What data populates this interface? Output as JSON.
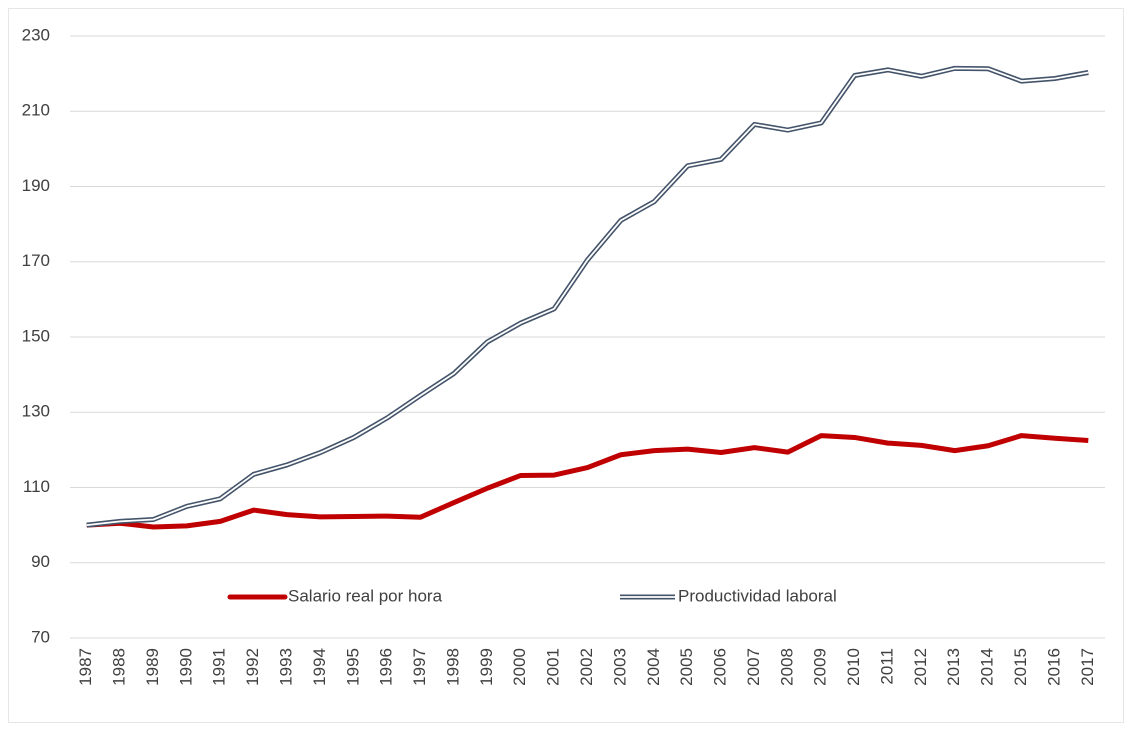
{
  "chart_data": {
    "type": "line",
    "categories": [
      "1987",
      "1988",
      "1989",
      "1990",
      "1991",
      "1992",
      "1993",
      "1994",
      "1995",
      "1996",
      "1997",
      "1998",
      "1999",
      "2000",
      "2001",
      "2002",
      "2003",
      "2004",
      "2005",
      "2006",
      "2007",
      "2008",
      "2009",
      "2010",
      "2011",
      "2012",
      "2013",
      "2014",
      "2015",
      "2016",
      "2017"
    ],
    "series": [
      {
        "name": "Salario real por hora",
        "color": "#c00000",
        "style": "solid",
        "values": [
          100,
          100.5,
          99.5,
          99.8,
          101,
          104,
          102.8,
          102.2,
          102.3,
          102.4,
          102.1,
          106,
          109.8,
          113.2,
          113.3,
          115.3,
          118.7,
          119.8,
          120.2,
          119.3,
          120.6,
          119.4,
          123.8,
          123.3,
          121.8,
          121.2,
          119.8,
          121.1,
          123.8,
          123.1,
          122.5
        ]
      },
      {
        "name": "Productividad laboral",
        "color": "#44546a",
        "style": "double",
        "values": [
          100,
          101,
          101.5,
          105,
          107,
          113.5,
          116,
          119.3,
          123.3,
          128.5,
          134.5,
          140.3,
          148.7,
          153.7,
          157.5,
          170.5,
          181,
          186,
          195.5,
          197.2,
          206.5,
          205,
          206.9,
          219.5,
          221,
          219.3,
          221.4,
          221.3,
          218,
          218.7,
          220.3
        ]
      }
    ],
    "ylim": [
      70,
      230
    ],
    "yticks": [
      70,
      90,
      110,
      130,
      150,
      170,
      190,
      210,
      230
    ],
    "grid": true,
    "legend": "bottom"
  }
}
